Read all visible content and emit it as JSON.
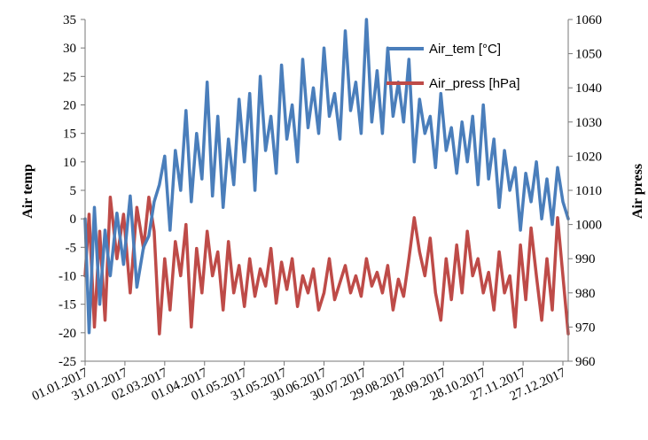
{
  "chart_data": {
    "type": "line",
    "title": "",
    "xlabel": "",
    "ylabel": "Air temp",
    "y2label": "Air press",
    "xlim": [
      "2017-01-01",
      "2017-12-31"
    ],
    "ylim": [
      -25,
      35
    ],
    "y2lim": [
      960,
      1060
    ],
    "x_ticks": [
      "01.01.2017",
      "31.01.2017",
      "02.03.2017",
      "01.04.2017",
      "01.05.2017",
      "31.05.2017",
      "30.06.2017",
      "30.07.2017",
      "29.08.2017",
      "28.09.2017",
      "28.10.2017",
      "27.11.2017",
      "27.12.2017"
    ],
    "y_ticks": [
      35,
      30,
      25,
      20,
      15,
      10,
      5,
      0,
      -5,
      -10,
      -15,
      -20,
      -25
    ],
    "y2_ticks": [
      1060,
      1050,
      1040,
      1030,
      1020,
      1010,
      1000,
      990,
      980,
      970,
      960
    ],
    "grid": false,
    "legend_position": "top-right",
    "series": [
      {
        "name": "Air_tem [°C]",
        "axis": "left",
        "color": "#4a7ebb",
        "x": [
          "2017-01-01",
          "2017-01-04",
          "2017-01-08",
          "2017-01-12",
          "2017-01-16",
          "2017-01-20",
          "2017-01-25",
          "2017-01-30",
          "2017-02-04",
          "2017-02-09",
          "2017-02-14",
          "2017-02-18",
          "2017-02-22",
          "2017-02-26",
          "2017-03-02",
          "2017-03-06",
          "2017-03-10",
          "2017-03-14",
          "2017-03-18",
          "2017-03-22",
          "2017-03-26",
          "2017-03-30",
          "2017-04-03",
          "2017-04-07",
          "2017-04-11",
          "2017-04-15",
          "2017-04-19",
          "2017-04-23",
          "2017-04-27",
          "2017-05-01",
          "2017-05-05",
          "2017-05-09",
          "2017-05-13",
          "2017-05-17",
          "2017-05-21",
          "2017-05-25",
          "2017-05-29",
          "2017-06-02",
          "2017-06-06",
          "2017-06-10",
          "2017-06-14",
          "2017-06-18",
          "2017-06-22",
          "2017-06-26",
          "2017-06-30",
          "2017-07-04",
          "2017-07-08",
          "2017-07-12",
          "2017-07-16",
          "2017-07-20",
          "2017-07-24",
          "2017-07-28",
          "2017-08-01",
          "2017-08-05",
          "2017-08-09",
          "2017-08-13",
          "2017-08-17",
          "2017-08-21",
          "2017-08-25",
          "2017-08-29",
          "2017-09-02",
          "2017-09-06",
          "2017-09-10",
          "2017-09-14",
          "2017-09-18",
          "2017-09-22",
          "2017-09-26",
          "2017-09-30",
          "2017-10-04",
          "2017-10-08",
          "2017-10-12",
          "2017-10-16",
          "2017-10-20",
          "2017-10-24",
          "2017-10-28",
          "2017-11-01",
          "2017-11-05",
          "2017-11-09",
          "2017-11-13",
          "2017-11-17",
          "2017-11-21",
          "2017-11-25",
          "2017-11-29",
          "2017-12-03",
          "2017-12-07",
          "2017-12-11",
          "2017-12-15",
          "2017-12-19",
          "2017-12-23",
          "2017-12-27",
          "2017-12-31"
        ],
        "y": [
          0,
          -20,
          2,
          -15,
          -2,
          -10,
          1,
          -8,
          4,
          -12,
          -5,
          -3,
          3,
          6,
          11,
          -2,
          12,
          5,
          19,
          3,
          15,
          7,
          24,
          4,
          18,
          2,
          14,
          6,
          21,
          10,
          22,
          5,
          25,
          12,
          18,
          8,
          27,
          14,
          20,
          10,
          28,
          16,
          23,
          15,
          30,
          18,
          22,
          14,
          33,
          19,
          24,
          15,
          35,
          17,
          26,
          15,
          30,
          18,
          24,
          17,
          28,
          10,
          21,
          15,
          18,
          9,
          22,
          12,
          16,
          8,
          17,
          10,
          18,
          6,
          20,
          7,
          14,
          2,
          12,
          5,
          9,
          -2,
          8,
          3,
          10,
          0,
          7,
          -1,
          9,
          3,
          0
        ]
      },
      {
        "name": "Air_press [hPa]",
        "axis": "right",
        "color": "#be4b48",
        "x": [
          "2017-01-01",
          "2017-01-04",
          "2017-01-08",
          "2017-01-12",
          "2017-01-16",
          "2017-01-20",
          "2017-01-25",
          "2017-01-30",
          "2017-02-04",
          "2017-02-09",
          "2017-02-14",
          "2017-02-18",
          "2017-02-22",
          "2017-02-26",
          "2017-03-02",
          "2017-03-06",
          "2017-03-10",
          "2017-03-14",
          "2017-03-18",
          "2017-03-22",
          "2017-03-26",
          "2017-03-30",
          "2017-04-03",
          "2017-04-07",
          "2017-04-11",
          "2017-04-15",
          "2017-04-19",
          "2017-04-23",
          "2017-04-27",
          "2017-05-01",
          "2017-05-05",
          "2017-05-09",
          "2017-05-13",
          "2017-05-17",
          "2017-05-21",
          "2017-05-25",
          "2017-05-29",
          "2017-06-02",
          "2017-06-06",
          "2017-06-10",
          "2017-06-14",
          "2017-06-18",
          "2017-06-22",
          "2017-06-26",
          "2017-06-30",
          "2017-07-04",
          "2017-07-08",
          "2017-07-12",
          "2017-07-16",
          "2017-07-20",
          "2017-07-24",
          "2017-07-28",
          "2017-08-01",
          "2017-08-05",
          "2017-08-09",
          "2017-08-13",
          "2017-08-17",
          "2017-08-21",
          "2017-08-25",
          "2017-08-29",
          "2017-09-02",
          "2017-09-06",
          "2017-09-10",
          "2017-09-14",
          "2017-09-18",
          "2017-09-22",
          "2017-09-26",
          "2017-09-30",
          "2017-10-04",
          "2017-10-08",
          "2017-10-12",
          "2017-10-16",
          "2017-10-20",
          "2017-10-24",
          "2017-10-28",
          "2017-11-01",
          "2017-11-05",
          "2017-11-09",
          "2017-11-13",
          "2017-11-17",
          "2017-11-21",
          "2017-11-25",
          "2017-11-29",
          "2017-12-03",
          "2017-12-07",
          "2017-12-11",
          "2017-12-15",
          "2017-12-19",
          "2017-12-23",
          "2017-12-27",
          "2017-12-31"
        ],
        "y": [
          985,
          1003,
          970,
          998,
          972,
          1008,
          990,
          1003,
          980,
          1005,
          993,
          1008,
          998,
          968,
          990,
          975,
          995,
          985,
          1000,
          970,
          993,
          980,
          998,
          985,
          992,
          975,
          995,
          980,
          988,
          976,
          990,
          979,
          987,
          982,
          993,
          977,
          989,
          981,
          990,
          976,
          985,
          980,
          987,
          975,
          980,
          990,
          978,
          983,
          988,
          980,
          985,
          979,
          990,
          982,
          986,
          980,
          988,
          975,
          984,
          979,
          990,
          1002,
          992,
          985,
          996,
          980,
          972,
          990,
          978,
          994,
          980,
          998,
          985,
          990,
          980,
          986,
          975,
          992,
          980,
          985,
          970,
          994,
          978,
          999,
          985,
          972,
          990,
          975,
          1002,
          985,
          968
        ]
      }
    ]
  }
}
